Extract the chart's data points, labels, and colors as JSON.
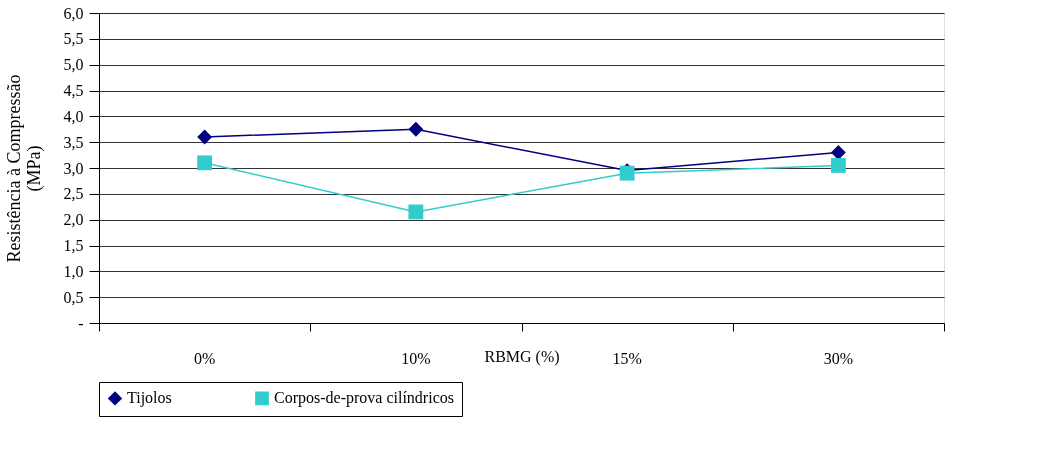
{
  "chart_data": {
    "type": "line",
    "xlabel": "RBMG (%)",
    "ylabel": "Resistência à Compressão\n(MPa)",
    "categories": [
      "0%",
      "10%",
      "15%",
      "30%"
    ],
    "series": [
      {
        "name": "Tijolos",
        "color": "#000080",
        "marker": "diamond",
        "values": [
          3.6,
          3.75,
          2.95,
          3.3
        ]
      },
      {
        "name": "Corpos-de-prova cilíndricos",
        "color": "#33cccc",
        "marker": "square",
        "values": [
          3.1,
          2.15,
          2.9,
          3.05
        ]
      }
    ],
    "ylim": [
      0,
      6
    ],
    "yticks": [
      {
        "value": 0,
        "label": "-"
      },
      {
        "value": 0.5,
        "label": "0,5"
      },
      {
        "value": 1,
        "label": "1,0"
      },
      {
        "value": 1.5,
        "label": "1,5"
      },
      {
        "value": 2,
        "label": "2,0"
      },
      {
        "value": 2.5,
        "label": "2,5"
      },
      {
        "value": 3,
        "label": "3,0"
      },
      {
        "value": 3.5,
        "label": "3,5"
      },
      {
        "value": 4,
        "label": "4,0"
      },
      {
        "value": 4.5,
        "label": "4,5"
      },
      {
        "value": 5,
        "label": "5,0"
      },
      {
        "value": 5.5,
        "label": "5,5"
      },
      {
        "value": 6,
        "label": "6,0"
      }
    ],
    "grid": "y",
    "legend": "bottom",
    "line_style": "solid"
  }
}
